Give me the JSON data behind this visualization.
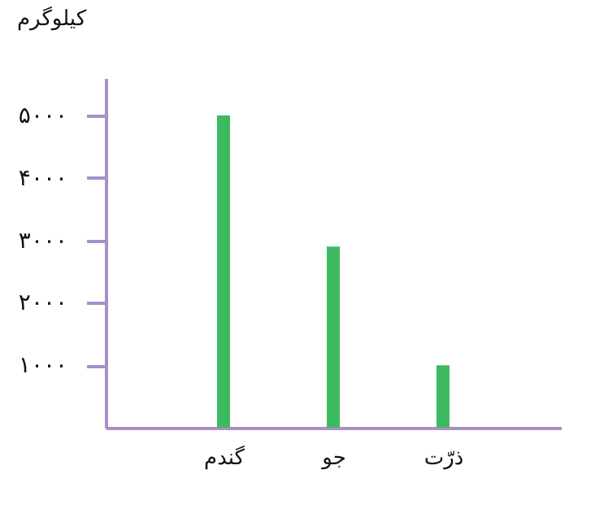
{
  "chart_data": {
    "type": "bar",
    "ylabel": "کیلوگرم",
    "categories": [
      "گندم",
      "جو",
      "ذرّت"
    ],
    "values": [
      5000,
      2900,
      1000
    ],
    "color": "#3dba5f",
    "ylim": [
      0,
      5600
    ],
    "yticks": [
      {
        "value": 1000,
        "label": "۱۰۰۰"
      },
      {
        "value": 2000,
        "label": "۲۰۰۰"
      },
      {
        "value": 3000,
        "label": "۳۰۰۰"
      },
      {
        "value": 4000,
        "label": "۴۰۰۰"
      },
      {
        "value": 5000,
        "label": "۵۰۰۰"
      }
    ],
    "grid": false
  }
}
